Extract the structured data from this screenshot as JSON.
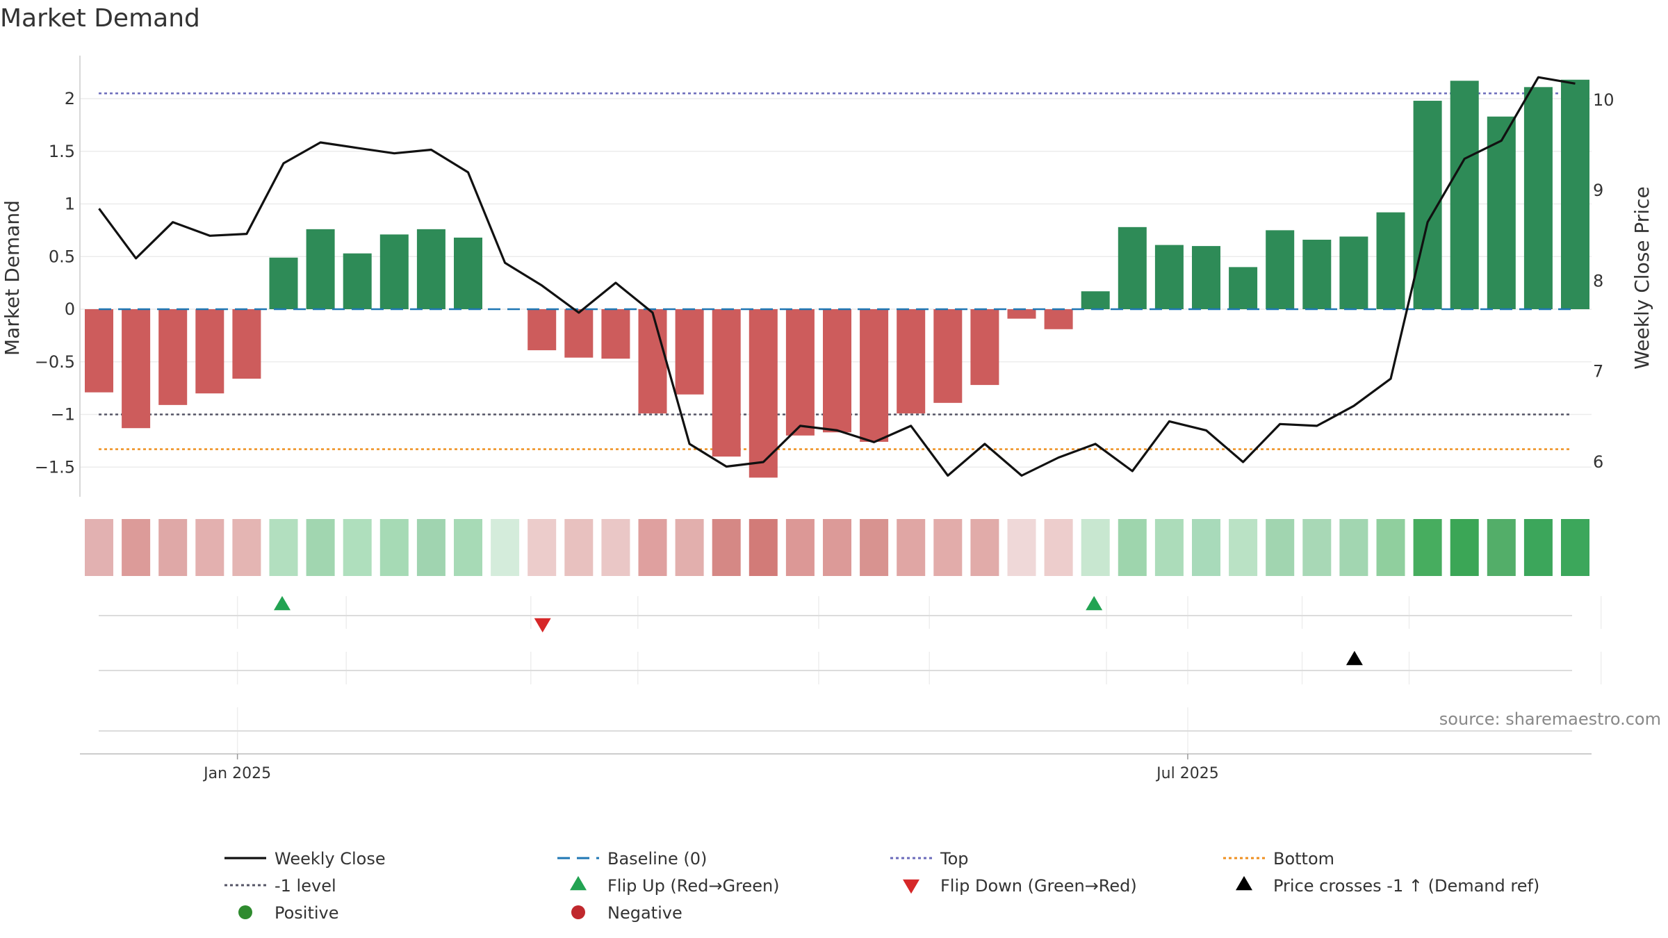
{
  "title": "Market Demand",
  "source": "source: sharemaestro.com",
  "chart_data": {
    "type": "bar",
    "title": "Market Demand",
    "ylabel": "Market Demand",
    "y2label": "Weekly Close Price",
    "ylim": [
      -1.8,
      2.4
    ],
    "y2lim": [
      5.55,
      10.55
    ],
    "yticks": [
      2,
      1.5,
      1,
      0.5,
      0,
      -0.5,
      -1,
      -1.5
    ],
    "ytick_labels": [
      "2",
      "1.5",
      "1",
      "0.5",
      "0",
      "−0.5",
      "−1",
      "−1.5"
    ],
    "y2ticks": [
      10,
      9,
      8,
      7,
      6
    ],
    "y2tick_labels": [
      "10",
      "9",
      "8",
      "7",
      "6"
    ],
    "xtick_labels": [
      "Jan 2025",
      "Jul 2025"
    ],
    "xtick_positions": [
      3.75,
      29.5
    ],
    "grid": true,
    "legend_position": "bottom",
    "demand": [
      -0.79,
      -1.13,
      -0.91,
      -0.8,
      -0.66,
      0.49,
      0.76,
      0.53,
      0.71,
      0.76,
      0.68,
      0.0,
      -0.39,
      -0.46,
      -0.47,
      -0.99,
      -0.81,
      -1.4,
      -1.6,
      -1.2,
      -1.17,
      -1.26,
      -0.99,
      -0.89,
      -0.72,
      -0.09,
      -0.19,
      0.17,
      0.78,
      0.61,
      0.6,
      0.4,
      0.75,
      0.66,
      0.69,
      0.92,
      1.98,
      2.17,
      1.83,
      2.11,
      2.18
    ],
    "weekly_close": [
      8.8,
      8.25,
      8.65,
      8.5,
      8.52,
      9.3,
      9.53,
      9.47,
      9.41,
      9.45,
      9.2,
      8.2,
      7.95,
      7.65,
      7.98,
      7.65,
      6.2,
      5.95,
      6.0,
      6.4,
      6.35,
      6.22,
      6.4,
      5.85,
      6.2,
      5.85,
      6.05,
      6.2,
      5.9,
      6.45,
      6.35,
      6.0,
      6.42,
      6.4,
      6.62,
      6.92,
      8.65,
      9.35,
      9.55,
      10.25,
      10.18
    ],
    "baseline": 0,
    "top_level": 2.05,
    "minus_one_level": -1,
    "bottom_level": -1.33,
    "heat_strip": [
      "#e2b1b1",
      "#dc9b99",
      "#dfa8a7",
      "#e3b0af",
      "#e4b5b3",
      "#b2dfbf",
      "#a1d6b0",
      "#afdfbd",
      "#a6dab5",
      "#a0d4b0",
      "#a7dab6",
      "#d4ecdb",
      "#eccccb",
      "#e8c1bf",
      "#eac7c6",
      "#dfa09f",
      "#e2afad",
      "#d58885",
      "#d27b78",
      "#dc9896",
      "#dc9a98",
      "#d89390",
      "#e0a6a4",
      "#e2acaa",
      "#e1aba9",
      "#efd8d8",
      "#edcdcc",
      "#c8e7d0",
      "#9ed5ad",
      "#acdcba",
      "#a8daba",
      "#bae2c5",
      "#a1d5b0",
      "#a8d8b6",
      "#a2d6b1",
      "#90cf9e",
      "#47ad5f",
      "#3ba656",
      "#53ae69",
      "#3ca65b",
      "#3ca75b"
    ],
    "markers": {
      "flip_up_indices": [
        5,
        27
      ],
      "flip_down_indices": [
        12
      ],
      "price_cross_indices": [
        34
      ]
    },
    "colors": {
      "positive": "#2e8b57",
      "negative": "#cd5c5c",
      "weekly_close": "#111111",
      "baseline": "#1f77b4",
      "top": "#6a6aba",
      "minus_one": "#555566",
      "bottom": "#ef8f1f",
      "flip_up": "#22a352",
      "flip_down": "#d62728",
      "price_cross": "#000000",
      "positive_dot": "#2e8b2e",
      "negative_dot": "#c0282d"
    },
    "legend": [
      {
        "label": "Weekly Close",
        "symbol": "line",
        "color": "#111111"
      },
      {
        "label": "Baseline (0)",
        "symbol": "dashed",
        "color": "#1f77b4"
      },
      {
        "label": "Top",
        "symbol": "dotted",
        "color": "#6a6aba"
      },
      {
        "label": "Bottom",
        "symbol": "dotted",
        "color": "#ef8f1f"
      },
      {
        "label": "-1 level",
        "symbol": "dotted",
        "color": "#555566"
      },
      {
        "label": "Flip Up (Red→Green)",
        "symbol": "triangle-up",
        "color": "#22a352"
      },
      {
        "label": "Flip Down (Green→Red)",
        "symbol": "triangle-down",
        "color": "#d62728"
      },
      {
        "label": "Price crosses -1 ↑ (Demand ref)",
        "symbol": "triangle-up",
        "color": "#000000"
      },
      {
        "label": "Positive",
        "symbol": "dot",
        "color": "#2e8b2e"
      },
      {
        "label": "Negative",
        "symbol": "dot",
        "color": "#c0282d"
      }
    ]
  }
}
